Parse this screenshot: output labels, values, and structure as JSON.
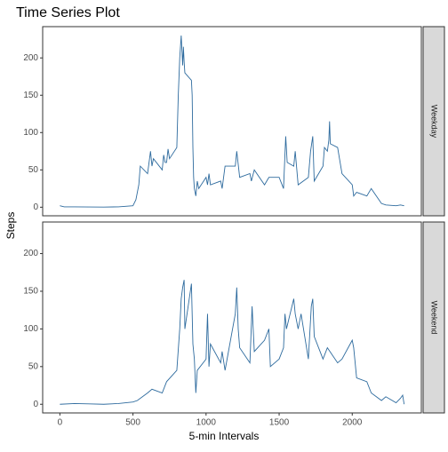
{
  "chart_data": {
    "type": "line",
    "title": "Time Series Plot",
    "x_label": "5-min Intervals",
    "y_label": "Steps",
    "xlim": [
      -117.75,
      2472.75
    ],
    "xticks": [
      0,
      500,
      1000,
      1500,
      2000
    ],
    "ylim": [
      -11.5,
      241.9
    ],
    "yticks": [
      0,
      50,
      100,
      150,
      200
    ],
    "grid": false,
    "facets": true,
    "series": [
      {
        "name": "Weekday",
        "color": "#2e6b9e",
        "x": [
          0,
          30,
          100,
          200,
          300,
          400,
          500,
          520,
          540,
          550,
          600,
          610,
          620,
          630,
          640,
          700,
          710,
          720,
          730,
          740,
          750,
          800,
          810,
          820,
          830,
          835,
          840,
          845,
          850,
          855,
          900,
          905,
          910,
          915,
          920,
          930,
          940,
          950,
          1000,
          1010,
          1020,
          1030,
          1100,
          1110,
          1130,
          1200,
          1210,
          1230,
          1300,
          1310,
          1330,
          1400,
          1430,
          1500,
          1530,
          1545,
          1555,
          1600,
          1610,
          1630,
          1700,
          1715,
          1730,
          1740,
          1800,
          1810,
          1830,
          1840,
          1845,
          1850,
          1900,
          1930,
          2000,
          2010,
          2030,
          2100,
          2130,
          2200,
          2230,
          2300,
          2330,
          2355
        ],
        "values": [
          2,
          0.5,
          0.5,
          0.3,
          0.2,
          0.5,
          2,
          10,
          30,
          55,
          45,
          60,
          75,
          55,
          65,
          50,
          70,
          60,
          60,
          78,
          65,
          80,
          150,
          200,
          230,
          210,
          190,
          215,
          195,
          180,
          170,
          150,
          80,
          40,
          25,
          15,
          35,
          25,
          40,
          30,
          45,
          30,
          35,
          25,
          55,
          55,
          75,
          40,
          45,
          35,
          50,
          30,
          40,
          40,
          25,
          95,
          60,
          55,
          75,
          30,
          40,
          75,
          95,
          35,
          55,
          80,
          75,
          90,
          115,
          85,
          80,
          45,
          30,
          15,
          20,
          15,
          25,
          5,
          3,
          2,
          3,
          2
        ]
      },
      {
        "name": "Weekend",
        "color": "#2e6b9e",
        "x": [
          0,
          100,
          200,
          300,
          400,
          500,
          530,
          600,
          630,
          700,
          730,
          800,
          820,
          830,
          840,
          850,
          855,
          900,
          910,
          920,
          930,
          940,
          1000,
          1010,
          1020,
          1030,
          1100,
          1110,
          1130,
          1200,
          1210,
          1220,
          1230,
          1300,
          1315,
          1330,
          1400,
          1430,
          1440,
          1500,
          1530,
          1540,
          1550,
          1600,
          1610,
          1630,
          1650,
          1700,
          1720,
          1730,
          1740,
          1800,
          1830,
          1900,
          1930,
          2000,
          2010,
          2030,
          2100,
          2130,
          2200,
          2230,
          2300,
          2330,
          2345,
          2355
        ],
        "values": [
          0,
          1,
          0.5,
          0,
          1,
          3,
          5,
          15,
          20,
          15,
          30,
          45,
          100,
          140,
          155,
          165,
          100,
          160,
          80,
          60,
          15,
          45,
          60,
          120,
          50,
          80,
          55,
          70,
          45,
          120,
          155,
          100,
          75,
          55,
          130,
          70,
          85,
          100,
          50,
          60,
          75,
          120,
          100,
          140,
          120,
          100,
          120,
          60,
          130,
          140,
          90,
          60,
          75,
          55,
          60,
          85,
          75,
          35,
          30,
          15,
          5,
          10,
          2,
          8,
          12,
          0
        ]
      }
    ]
  }
}
